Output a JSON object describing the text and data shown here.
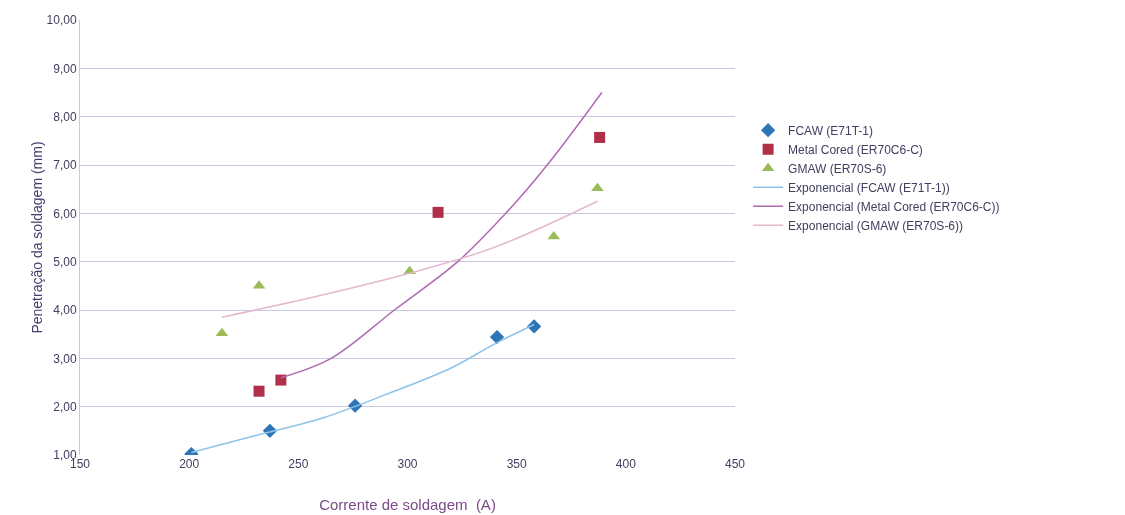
{
  "chart_data": {
    "type": "scatter",
    "xlabel": "Corrente de soldagem  (A)",
    "ylabel": "Penetração da soldagem (mm)",
    "xlim": [
      150,
      450
    ],
    "xticks": [
      150,
      200,
      250,
      300,
      350,
      400,
      450
    ],
    "ylim": [
      1,
      10
    ],
    "yticks": [
      {
        "value": 1,
        "label": "1,00"
      },
      {
        "value": 2,
        "label": "2,00"
      },
      {
        "value": 3,
        "label": "3,00"
      },
      {
        "value": 4,
        "label": "4,00"
      },
      {
        "value": 5,
        "label": "5,00"
      },
      {
        "value": 6,
        "label": "6,00"
      },
      {
        "value": 7,
        "label": "7,00"
      },
      {
        "value": 8,
        "label": "8,00"
      },
      {
        "value": 9,
        "label": "9,00"
      },
      {
        "value": 10,
        "label": "10,00"
      }
    ],
    "grid": "y",
    "legend": "right",
    "series": [
      {
        "name": "FCAW (E71T-1)",
        "color": "#2e75b6",
        "marker": "diamond",
        "x": [
          201,
          237,
          276,
          341,
          358
        ],
        "values": [
          1.02,
          1.5,
          2.02,
          3.44,
          3.66
        ]
      },
      {
        "name": "Metal Cored (ER70C6-C)",
        "color": "#b0304a",
        "marker": "square",
        "x": [
          232,
          242,
          314,
          388
        ],
        "values": [
          2.32,
          2.55,
          6.02,
          7.57
        ]
      },
      {
        "name": "GMAW (ER70S-6)",
        "color": "#9bbb59",
        "marker": "triangle",
        "x": [
          215,
          232,
          301,
          367,
          387
        ],
        "values": [
          3.52,
          4.5,
          4.8,
          5.52,
          6.52
        ]
      },
      {
        "name": "Exponencial (FCAW (E71T-1))",
        "type": "line",
        "color": "#8ec3ea",
        "marker": "none",
        "x": [
          201,
          230,
          260,
          290,
          320,
          340,
          358
        ],
        "values": [
          1.05,
          1.4,
          1.75,
          2.25,
          2.8,
          3.3,
          3.7
        ]
      },
      {
        "name": "Exponencial (Metal Cored (ER70C6-C))",
        "type": "line",
        "color": "#b06ab3",
        "marker": "none",
        "x": [
          242,
          265,
          294,
          323,
          345,
          364,
          389
        ],
        "values": [
          2.6,
          3.0,
          4.0,
          5.0,
          6.0,
          7.0,
          8.5
        ]
      },
      {
        "name": "Exponencial (GMAW (ER70S-6))",
        "type": "line",
        "color": "#e3b8cf",
        "marker": "none",
        "x": [
          215,
          260,
          300,
          340,
          387
        ],
        "values": [
          3.85,
          4.3,
          4.75,
          5.3,
          6.25
        ]
      }
    ]
  }
}
